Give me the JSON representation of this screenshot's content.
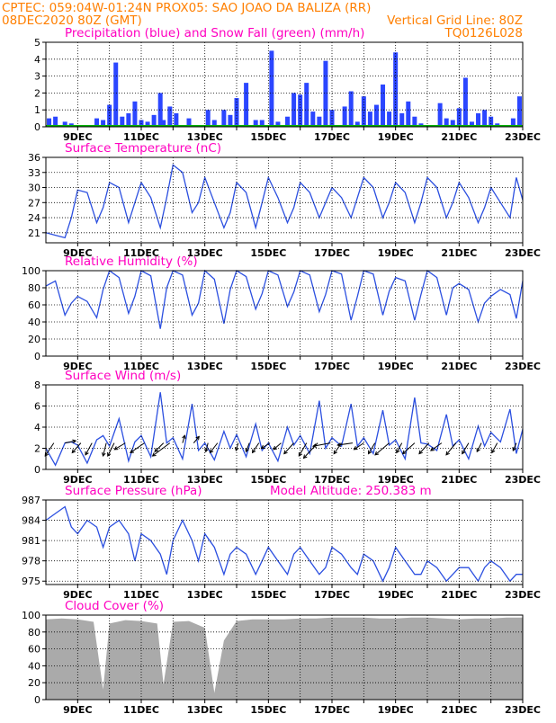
{
  "header": {
    "line1_left": "CPTEC:   059:04W-01:24N   PROX05: SAO JOAO DA BALIZA (RR)",
    "line2_left": "08DEC2020 80Z (GMT)",
    "line2_right": "Vertical Grid Line: 80Z",
    "line3_right": "TQ0126L028"
  },
  "colors": {
    "header": "#ff7f00",
    "title": "#ff00c0",
    "line": "#2b4fe0",
    "bar": "#2b46ff",
    "snow": "#00b000",
    "cloud": "#aaaaaa",
    "arrow": "#000000"
  },
  "x_ticks": [
    "9DEC",
    "11DEC",
    "13DEC",
    "15DEC",
    "17DEC",
    "19DEC",
    "21DEC",
    "23DEC"
  ],
  "chart_data": [
    {
      "id": "precip",
      "type": "bar",
      "title": "Precipitation (blue) and Snow Fall (green) (mm/h)",
      "ylim": [
        0,
        5
      ],
      "yticks": [
        "0",
        "1",
        "2",
        "3",
        "4",
        "5"
      ],
      "xlim": [
        0,
        15
      ],
      "x": [
        0.1,
        0.3,
        0.6,
        0.8,
        1.1,
        1.4,
        1.6,
        1.8,
        2.0,
        2.2,
        2.4,
        2.6,
        2.8,
        3.0,
        3.2,
        3.4,
        3.6,
        3.7,
        3.9,
        4.1,
        4.5,
        5.1,
        5.3,
        5.6,
        5.8,
        6.0,
        6.3,
        6.6,
        6.8,
        7.1,
        7.3,
        7.6,
        7.8,
        8.0,
        8.2,
        8.4,
        8.6,
        8.8,
        9.0,
        9.4,
        9.6,
        9.8,
        10.0,
        10.2,
        10.4,
        10.6,
        10.8,
        11.0,
        11.2,
        11.4,
        11.6,
        11.8,
        12.2,
        12.4,
        12.6,
        12.8,
        13.0,
        13.2,
        13.4,
        13.6,
        13.8,
        14.0,
        14.2,
        14.5,
        14.7,
        14.9
      ],
      "values": [
        0.5,
        0.6,
        0.3,
        0.2,
        0.0,
        0.0,
        0.5,
        0.4,
        1.3,
        3.8,
        0.6,
        0.8,
        1.5,
        0.4,
        0.3,
        0.7,
        2.0,
        0.4,
        1.2,
        0.8,
        0.5,
        1.0,
        0.4,
        1.0,
        0.7,
        1.7,
        2.6,
        0.4,
        0.4,
        4.5,
        0.3,
        0.6,
        2.0,
        1.9,
        2.6,
        0.9,
        0.6,
        3.9,
        1.0,
        1.2,
        2.1,
        0.3,
        1.8,
        0.9,
        1.3,
        2.5,
        0.9,
        4.4,
        0.8,
        1.5,
        0.6,
        0.2,
        0.0,
        1.4,
        0.5,
        0.4,
        1.1,
        2.9,
        0.3,
        0.8,
        1.0,
        0.6,
        0.2,
        0.0,
        0.5,
        1.8
      ],
      "snow": 0
    },
    {
      "id": "temp",
      "type": "line",
      "title": "Surface Temperature (nC)",
      "ylim": [
        19,
        36
      ],
      "yticks": [
        "21",
        "24",
        "27",
        "30",
        "33",
        "36"
      ],
      "xlim": [
        0,
        15
      ],
      "x": [
        0.0,
        0.3,
        0.6,
        0.8,
        1.0,
        1.3,
        1.6,
        1.8,
        2.0,
        2.3,
        2.6,
        2.8,
        3.0,
        3.3,
        3.6,
        3.8,
        4.0,
        4.3,
        4.6,
        4.8,
        5.0,
        5.3,
        5.6,
        5.8,
        6.0,
        6.3,
        6.6,
        6.8,
        7.0,
        7.3,
        7.6,
        7.8,
        8.0,
        8.3,
        8.6,
        8.8,
        9.0,
        9.3,
        9.6,
        9.8,
        10.0,
        10.3,
        10.6,
        10.8,
        11.0,
        11.3,
        11.6,
        11.8,
        12.0,
        12.3,
        12.6,
        12.8,
        13.0,
        13.3,
        13.6,
        13.8,
        14.0,
        14.3,
        14.6,
        14.8,
        15.0
      ],
      "values": [
        21,
        20.5,
        20,
        24,
        29.5,
        29,
        23,
        26,
        31,
        30,
        23,
        27,
        31,
        28,
        22,
        28,
        34.5,
        33,
        25,
        27,
        32,
        27,
        22,
        25,
        31,
        29,
        22,
        27,
        32,
        28,
        23,
        26,
        31,
        29,
        24,
        27,
        30,
        28,
        24,
        28,
        32,
        30,
        24,
        27,
        31,
        29,
        23,
        27,
        32,
        30,
        24,
        27,
        31,
        28,
        23,
        26,
        30,
        27,
        24,
        32,
        27.5
      ]
    },
    {
      "id": "rh",
      "type": "line",
      "title": "Relative Humidity (%)",
      "ylim": [
        0,
        100
      ],
      "yticks": [
        "0",
        "20",
        "40",
        "60",
        "80",
        "100"
      ],
      "xlim": [
        0,
        15
      ],
      "x": [
        0.0,
        0.3,
        0.6,
        0.8,
        1.0,
        1.3,
        1.6,
        1.8,
        2.0,
        2.3,
        2.6,
        2.8,
        3.0,
        3.3,
        3.6,
        3.8,
        4.0,
        4.3,
        4.6,
        4.8,
        5.0,
        5.3,
        5.6,
        5.8,
        6.0,
        6.3,
        6.6,
        6.8,
        7.0,
        7.3,
        7.6,
        7.8,
        8.0,
        8.3,
        8.6,
        8.8,
        9.0,
        9.3,
        9.6,
        9.8,
        10.0,
        10.3,
        10.6,
        10.8,
        11.0,
        11.3,
        11.6,
        11.8,
        12.0,
        12.3,
        12.6,
        12.8,
        13.0,
        13.3,
        13.6,
        13.8,
        14.0,
        14.3,
        14.6,
        14.8,
        15.0
      ],
      "values": [
        82,
        88,
        48,
        62,
        70,
        64,
        45,
        78,
        100,
        92,
        50,
        70,
        100,
        94,
        32,
        80,
        100,
        95,
        48,
        62,
        100,
        90,
        38,
        78,
        100,
        93,
        55,
        73,
        100,
        95,
        58,
        75,
        100,
        95,
        52,
        72,
        100,
        96,
        42,
        70,
        100,
        96,
        48,
        76,
        92,
        88,
        42,
        72,
        100,
        92,
        48,
        80,
        85,
        78,
        40,
        62,
        70,
        78,
        72,
        44,
        88
      ]
    },
    {
      "id": "wind",
      "type": "line",
      "title": "Surface Wind (m/s)",
      "ylim": [
        0,
        8
      ],
      "yticks": [
        "0",
        "2",
        "4",
        "6",
        "8"
      ],
      "xlim": [
        0,
        15
      ],
      "x": [
        0.0,
        0.3,
        0.6,
        0.8,
        1.0,
        1.3,
        1.6,
        1.8,
        2.0,
        2.3,
        2.6,
        2.8,
        3.0,
        3.3,
        3.6,
        3.8,
        4.0,
        4.3,
        4.6,
        4.8,
        5.0,
        5.3,
        5.6,
        5.8,
        6.0,
        6.3,
        6.6,
        6.8,
        7.0,
        7.3,
        7.6,
        7.8,
        8.0,
        8.3,
        8.6,
        8.8,
        9.0,
        9.3,
        9.6,
        9.8,
        10.0,
        10.3,
        10.6,
        10.8,
        11.0,
        11.3,
        11.6,
        11.8,
        12.0,
        12.3,
        12.6,
        12.8,
        13.0,
        13.3,
        13.6,
        13.8,
        14.0,
        14.3,
        14.6,
        14.8,
        15.0
      ],
      "values": [
        2.0,
        0.4,
        2.5,
        2.6,
        2.3,
        0.6,
        2.8,
        3.2,
        2.2,
        4.8,
        0.8,
        2.6,
        3.2,
        1.2,
        7.3,
        2.5,
        3.0,
        1.0,
        6.2,
        1.8,
        2.5,
        0.9,
        3.6,
        2.0,
        3.3,
        1.2,
        4.3,
        1.8,
        2.5,
        0.8,
        4.0,
        2.3,
        3.2,
        1.5,
        6.5,
        2.0,
        3.0,
        2.2,
        6.2,
        2.2,
        3.0,
        1.5,
        5.6,
        2.3,
        2.8,
        1.0,
        6.8,
        2.5,
        2.4,
        1.8,
        5.2,
        2.2,
        2.8,
        1.0,
        4.1,
        2.2,
        3.5,
        2.6,
        5.7,
        1.5,
        3.8
      ],
      "arrows": [
        {
          "x": 0.25,
          "u": -0.8,
          "v": -1.2
        },
        {
          "x": 0.6,
          "u": 1.0,
          "v": 0.2
        },
        {
          "x": 1.1,
          "u": -0.8,
          "v": -0.9
        },
        {
          "x": 1.45,
          "u": -0.6,
          "v": -1.1
        },
        {
          "x": 1.9,
          "u": -0.3,
          "v": -1.2
        },
        {
          "x": 2.15,
          "u": -0.6,
          "v": -1.2
        },
        {
          "x": 2.5,
          "u": -1.0,
          "v": -0.6
        },
        {
          "x": 3.1,
          "u": -1.3,
          "v": -0.9
        },
        {
          "x": 3.7,
          "u": -0.8,
          "v": -0.8
        },
        {
          "x": 3.9,
          "u": -1.6,
          "v": -1.2
        },
        {
          "x": 4.3,
          "u": 0.2,
          "v": 0.7
        },
        {
          "x": 4.65,
          "u": 0.5,
          "v": 0.6
        },
        {
          "x": 5.1,
          "u": -0.2,
          "v": -0.8
        },
        {
          "x": 5.4,
          "u": -0.7,
          "v": -0.9
        },
        {
          "x": 6.05,
          "u": -0.2,
          "v": -0.7
        },
        {
          "x": 6.4,
          "u": -0.3,
          "v": -0.8
        },
        {
          "x": 6.7,
          "u": -0.6,
          "v": -0.9
        },
        {
          "x": 7.05,
          "u": -0.8,
          "v": -0.5
        },
        {
          "x": 7.4,
          "u": -0.7,
          "v": -0.6
        },
        {
          "x": 7.8,
          "u": -0.9,
          "v": -1.0
        },
        {
          "x": 8.2,
          "u": -0.7,
          "v": -1.2
        },
        {
          "x": 8.55,
          "u": -1.3,
          "v": -1.4
        },
        {
          "x": 8.95,
          "u": -1.6,
          "v": -0.3
        },
        {
          "x": 9.3,
          "u": -0.7,
          "v": -1.0
        },
        {
          "x": 9.65,
          "u": -1.4,
          "v": -0.2
        },
        {
          "x": 10.0,
          "u": -0.9,
          "v": -0.6
        },
        {
          "x": 10.35,
          "u": -0.6,
          "v": -1.0
        },
        {
          "x": 10.8,
          "u": -1.3,
          "v": -1.1
        },
        {
          "x": 11.2,
          "u": -0.5,
          "v": -0.9
        },
        {
          "x": 11.6,
          "u": -1.1,
          "v": -1.0
        },
        {
          "x": 12.05,
          "u": -0.9,
          "v": -1.0
        },
        {
          "x": 12.45,
          "u": -1.0,
          "v": -0.7
        },
        {
          "x": 12.9,
          "u": -0.9,
          "v": -1.1
        },
        {
          "x": 13.3,
          "u": -0.6,
          "v": -1.0
        },
        {
          "x": 13.7,
          "u": -0.4,
          "v": -0.8
        },
        {
          "x": 14.2,
          "u": -0.5,
          "v": -0.9
        },
        {
          "x": 14.8,
          "u": -0.3,
          "v": -0.7
        }
      ]
    },
    {
      "id": "pressure",
      "type": "line",
      "title": "Surface Pressure (hPa)",
      "subtitle": "Model Altitude: 250.383 m",
      "ylim": [
        974.5,
        987
      ],
      "yticks": [
        "975",
        "978",
        "981",
        "984",
        "987"
      ],
      "xlim": [
        0,
        15
      ],
      "x": [
        0.0,
        0.3,
        0.6,
        0.8,
        1.0,
        1.3,
        1.6,
        1.8,
        2.0,
        2.3,
        2.6,
        2.8,
        3.0,
        3.3,
        3.6,
        3.8,
        4.0,
        4.3,
        4.6,
        4.8,
        5.0,
        5.3,
        5.6,
        5.8,
        6.0,
        6.3,
        6.6,
        6.8,
        7.0,
        7.3,
        7.6,
        7.8,
        8.0,
        8.3,
        8.6,
        8.8,
        9.0,
        9.3,
        9.6,
        9.8,
        10.0,
        10.3,
        10.6,
        10.8,
        11.0,
        11.3,
        11.6,
        11.8,
        12.0,
        12.3,
        12.6,
        12.8,
        13.0,
        13.3,
        13.6,
        13.8,
        14.0,
        14.3,
        14.6,
        14.8,
        15.0
      ],
      "values": [
        984,
        985,
        986,
        983,
        982,
        984,
        983,
        980,
        983,
        984,
        982,
        978,
        982,
        981,
        979,
        976,
        981,
        984,
        981,
        978,
        982,
        980,
        976,
        979,
        980,
        979,
        976,
        978,
        980,
        978,
        976,
        979,
        980,
        978,
        976,
        977,
        980,
        979,
        977,
        976,
        979,
        978,
        975,
        977,
        980,
        978,
        976,
        976,
        978,
        977,
        975,
        976,
        977,
        977,
        975,
        977,
        978,
        977,
        975,
        976,
        976
      ]
    },
    {
      "id": "cloud",
      "type": "area",
      "title": "Cloud Cover (%)",
      "ylim": [
        0,
        100
      ],
      "yticks": [
        "0",
        "20",
        "40",
        "60",
        "80",
        "100"
      ],
      "xlim": [
        0,
        15
      ],
      "x": [
        0.0,
        0.5,
        1.0,
        1.5,
        1.8,
        2.0,
        2.5,
        3.0,
        3.5,
        3.7,
        4.0,
        4.5,
        5.0,
        5.3,
        5.6,
        6.0,
        6.5,
        7.0,
        7.5,
        8.0,
        8.5,
        9.0,
        9.5,
        10.0,
        10.5,
        11.0,
        11.5,
        12.0,
        12.5,
        13.0,
        13.5,
        14.0,
        14.5,
        15.0
      ],
      "values": [
        95,
        96,
        95,
        92,
        12,
        90,
        94,
        93,
        90,
        18,
        92,
        93,
        85,
        8,
        70,
        93,
        95,
        95,
        95,
        96,
        96,
        97,
        97,
        97,
        96,
        96,
        97,
        97,
        96,
        95,
        96,
        96,
        97,
        97
      ]
    }
  ]
}
